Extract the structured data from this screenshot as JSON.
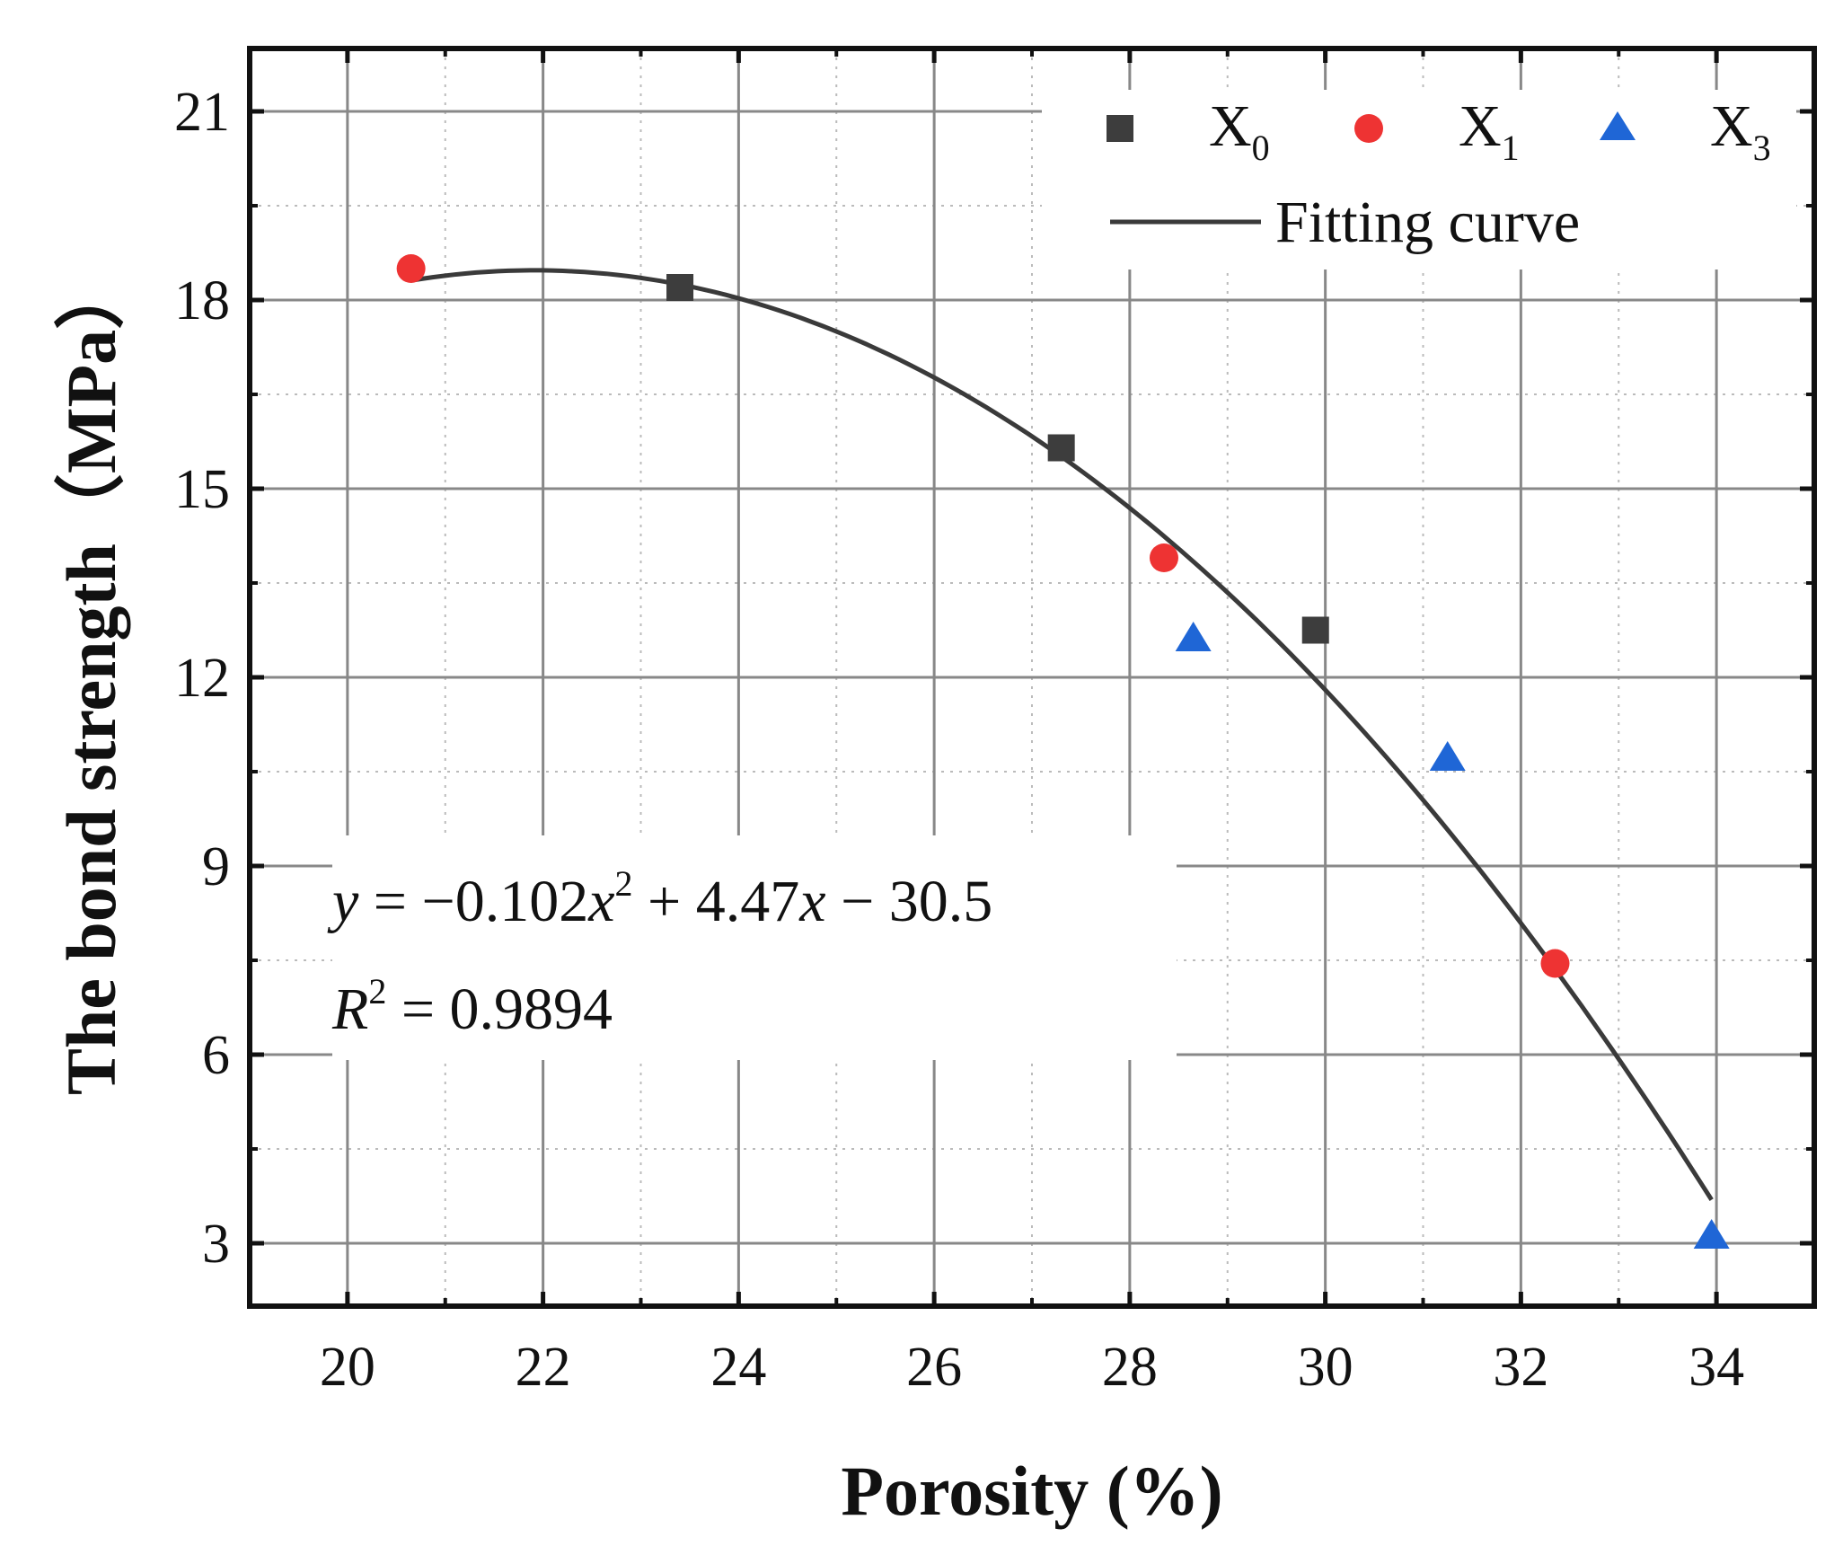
{
  "chart_data": {
    "type": "scatter",
    "title": "",
    "xlabel": "Porosity (%)",
    "ylabel": "The bond strength（MPa）",
    "xlim": [
      19,
      35
    ],
    "ylim": [
      2,
      22
    ],
    "x_ticks": [
      20,
      22,
      24,
      26,
      28,
      30,
      32,
      34
    ],
    "y_ticks": [
      3,
      6,
      9,
      12,
      15,
      18,
      21
    ],
    "x_tick_labels": [
      "20",
      "22",
      "24",
      "26",
      "28",
      "30",
      "32",
      "34"
    ],
    "y_tick_labels": [
      "3",
      "6",
      "9",
      "12",
      "15",
      "18",
      "21"
    ],
    "grid": true,
    "legend_position": "top-right",
    "series": [
      {
        "name": "X0",
        "label_main": "X",
        "label_sub": "0",
        "marker": "square",
        "color": "#3d3d3d",
        "x": [
          23.4,
          27.3,
          29.9
        ],
        "y": [
          18.2,
          15.65,
          12.75
        ]
      },
      {
        "name": "X1",
        "label_main": "X",
        "label_sub": "1",
        "marker": "circle",
        "color": "#ee3333",
        "x": [
          20.65,
          28.35,
          32.35
        ],
        "y": [
          18.5,
          13.9,
          7.45
        ]
      },
      {
        "name": "X3",
        "label_main": "X",
        "label_sub": "3",
        "marker": "triangle",
        "color": "#1f66d6",
        "x": [
          28.65,
          31.25,
          33.95
        ],
        "y": [
          12.6,
          10.7,
          3.1
        ]
      }
    ],
    "fit": {
      "name": "Fitting curve",
      "color": "#3a3a3a",
      "coefficients": {
        "a": -0.102,
        "b": 4.47,
        "c": -30.5
      },
      "x_range": [
        20.65,
        33.95
      ]
    },
    "annotations": {
      "equation": {
        "y": "y",
        "eq1": " = −0.102",
        "x1": "x",
        "sup1": "2",
        "mid": " + 4.47",
        "x2": "x",
        "tail": " − 30.5"
      },
      "r2": {
        "r": "R",
        "sup": "2",
        "rest": " = 0.9894"
      }
    }
  }
}
